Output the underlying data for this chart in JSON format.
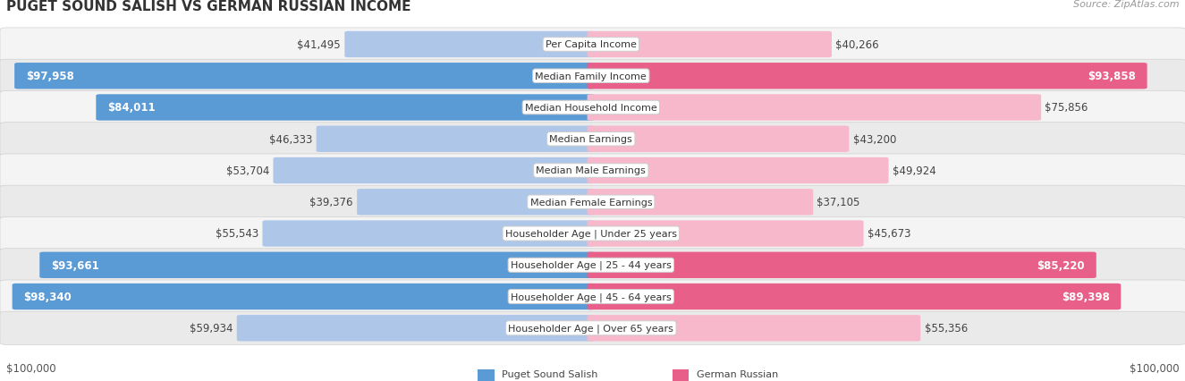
{
  "title": "PUGET SOUND SALISH VS GERMAN RUSSIAN INCOME",
  "source": "Source: ZipAtlas.com",
  "categories": [
    "Per Capita Income",
    "Median Family Income",
    "Median Household Income",
    "Median Earnings",
    "Median Male Earnings",
    "Median Female Earnings",
    "Householder Age | Under 25 years",
    "Householder Age | 25 - 44 years",
    "Householder Age | 45 - 64 years",
    "Householder Age | Over 65 years"
  ],
  "left_values": [
    41495,
    97958,
    84011,
    46333,
    53704,
    39376,
    55543,
    93661,
    98340,
    59934
  ],
  "right_values": [
    40266,
    93858,
    75856,
    43200,
    49924,
    37105,
    45673,
    85220,
    89398,
    55356
  ],
  "left_labels": [
    "$41,495",
    "$97,958",
    "$84,011",
    "$46,333",
    "$53,704",
    "$39,376",
    "$55,543",
    "$93,661",
    "$98,340",
    "$59,934"
  ],
  "right_labels": [
    "$40,266",
    "$93,858",
    "$75,856",
    "$43,200",
    "$49,924",
    "$37,105",
    "$45,673",
    "$85,220",
    "$89,398",
    "$55,356"
  ],
  "max_value": 100000,
  "left_color_light": "#aec6e8",
  "left_color_dark": "#5b9bd5",
  "right_color_light": "#f7b8cb",
  "right_color_dark": "#e8608a",
  "legend_left": "Puget Sound Salish",
  "legend_right": "German Russian",
  "xlabel_left": "$100,000",
  "xlabel_right": "$100,000",
  "white_label_threshold": 0.78,
  "title_fontsize": 11,
  "label_fontsize": 8.5,
  "cat_fontsize": 8.0,
  "source_fontsize": 8.0
}
